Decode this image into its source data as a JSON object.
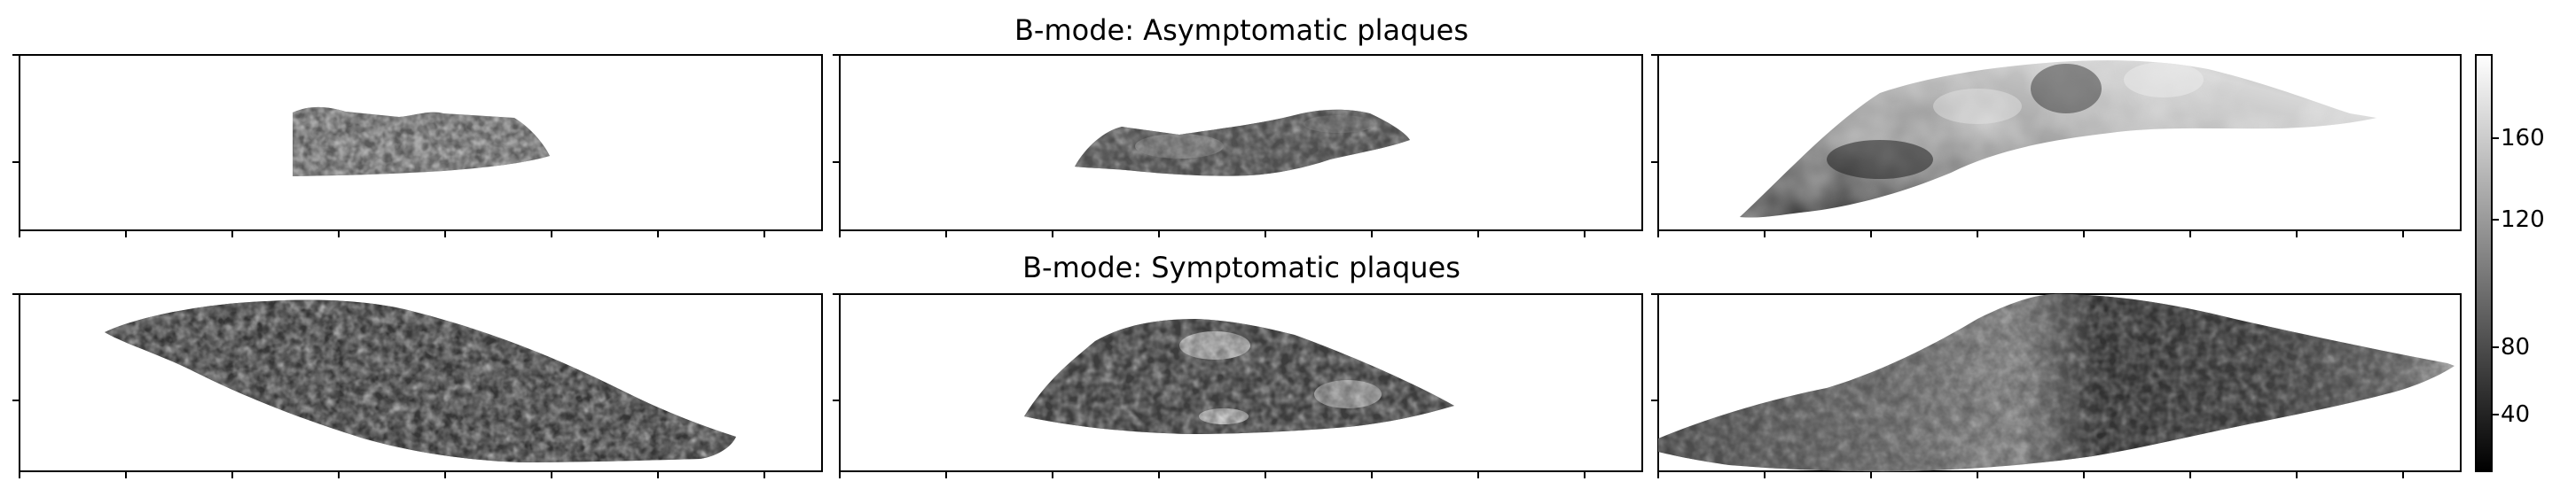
{
  "figure": {
    "row_titles": {
      "top": "B-mode: Asymptomatic plaques",
      "bottom": "B-mode: Symptomatic plaques"
    },
    "panels": [
      {
        "row": "asymptomatic",
        "index": 1,
        "content": "small grayscale plaque, medium-dark speckle"
      },
      {
        "row": "asymptomatic",
        "index": 2,
        "content": "curved grayscale plaque, mixed intensities"
      },
      {
        "row": "asymptomatic",
        "index": 3,
        "content": "large bright arched plaque"
      },
      {
        "row": "symptomatic",
        "index": 1,
        "content": "elongated diagonal plaque, dark speckle"
      },
      {
        "row": "symptomatic",
        "index": 2,
        "content": "dome plaque with bright spots"
      },
      {
        "row": "symptomatic",
        "index": 3,
        "content": "wide plaque with dark band"
      }
    ],
    "colorbar": {
      "colormap": "gray",
      "ticks": [
        "40",
        "80",
        "120",
        "160"
      ]
    },
    "colors": {
      "axes": "#000000",
      "background": "#ffffff",
      "colormap_low": "#000000",
      "colormap_high": "#ffffff"
    }
  }
}
